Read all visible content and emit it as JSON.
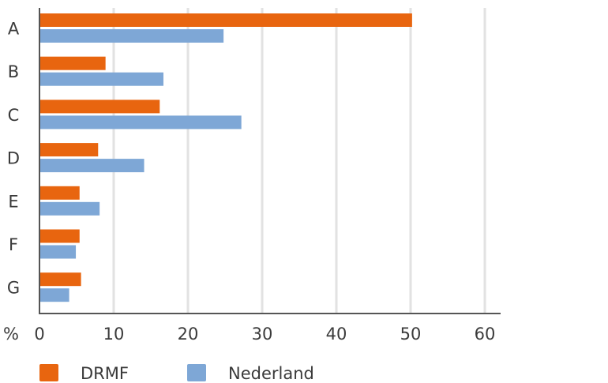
{
  "chart_data": {
    "type": "bar",
    "orientation": "horizontal",
    "categories": [
      "A",
      "B",
      "C",
      "D",
      "E",
      "F",
      "G"
    ],
    "series": [
      {
        "name": "DRMF",
        "color": "#e8650f",
        "values": [
          50.2,
          8.9,
          16.2,
          7.9,
          5.4,
          5.4,
          5.6
        ]
      },
      {
        "name": "Nederland",
        "color": "#7ea7d6",
        "values": [
          24.8,
          16.7,
          27.2,
          14.1,
          8.1,
          4.9,
          4.0
        ]
      }
    ],
    "xlim": [
      0,
      60
    ],
    "xticks": [
      "0",
      "10",
      "20",
      "30",
      "40",
      "50",
      "60"
    ],
    "xunit": "%",
    "grid": "vertical",
    "legend": "bottom-left"
  }
}
